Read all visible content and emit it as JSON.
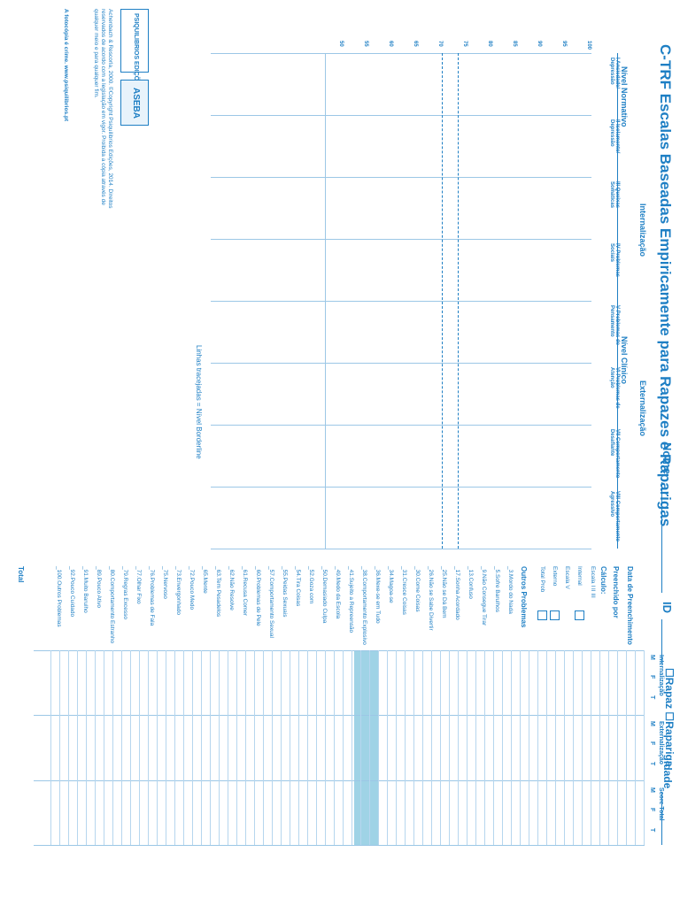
{
  "header": {
    "title": "C-TRF Escalas Baseadas Empiricamente para Rapazes e Raparigas",
    "name_label": "Nome",
    "id_label": "ID",
    "sex_label": "☐Rapaz ☐Rapariga",
    "age_label": "Idade"
  },
  "profile": {
    "nivel_normativo": "Nível Normativo",
    "nivel_clinico": "Nível Clínico",
    "internalizacao": "Internalização",
    "externalizacao": "Externalização",
    "rapaz": "Rapaz",
    "rapariga": "Rapariga",
    "columns": [
      {
        "label": "I\nAnsiedade/ Depressão"
      },
      {
        "label": "II\nIsolamento/ Depressão"
      },
      {
        "label": "III\nQueixas Somáticas"
      },
      {
        "label": "IV\nProblemas Sociais"
      },
      {
        "label": "V\nProblemas de Pensamento"
      },
      {
        "label": "VI\nProblemas de Atenção"
      },
      {
        "label": "VII\nComportamento Desafiante"
      },
      {
        "label": "VIII\nComportamento Agressivo"
      }
    ],
    "scale_left": [
      "100",
      "95",
      "90",
      "85",
      "80",
      "75",
      "70",
      "65",
      "60",
      "55",
      "50"
    ],
    "total_label": "Total",
    "borderline_note": "Linhas tracejadas = Nível Borderline"
  },
  "right_panel": {
    "data_label": "Data de Preenchimento",
    "preenchido_label": "Preenchido por",
    "calculo_label": "Cálculo:",
    "escala_label": "Escala I II III",
    "internal_label": "Internal",
    "escala_v": "Escala V",
    "externo_label": "Externo",
    "total_prob_label": "Total Prob",
    "outros_label": "Outros Problemas",
    "outros_items": [
      "3.Mordo do Nada",
      "5.Sofre Barulhos",
      "9.Não Consegue Tirar",
      "13.Confuso",
      "17.Sonha Acordado",
      "25.Não se Dá Bem",
      "26.Não se Sabe Divertir",
      "30.Come Coisas",
      "31.Cresce Coisas",
      "34.Magoa-se",
      "36.Mexe-se em Tudo",
      "38.Comportamento Explosivo",
      "41.Sujeito a Repreensão",
      "49.Medo da Escola",
      "50.Demasiado Culpa",
      "52.Goza com",
      "54.Tira Coisas",
      "55.Peidas Sexuais",
      "57.Comportamento Sexual",
      "60.Problemas de Pele",
      "61.Recusa Comer",
      "62.Não Resolve",
      "63.Tem Pesadelos",
      "65.Mente",
      "72.Pouco Medo",
      "73.Envergonhado",
      "75.Nervoso",
      "76.Problemas de Fala",
      "77.Olhar Fixo",
      "79.Regras Excesso",
      "80.Comportamento Estranho",
      "89.Pouco Ativo",
      "91.Muito Barulho",
      "92.Pouco Cuidado",
      "100.Outros Problemas"
    ],
    "total_label": "Total"
  },
  "score_table": {
    "internalizacao": "Internalização",
    "externalizacao": "Externalização",
    "score_total": "Score Total",
    "m": "M",
    "f": "F",
    "t": "T"
  },
  "publisher": {
    "logo_left": "PSIQUILIBRIOS EDIÇÕES",
    "logo_right": "ASEBA",
    "copyright": "Achenbach & Rescorla, 2000. ©Copyright Psiquilibrios Edições, 2014. Direitos reservados de acordo com a legislação em vigor. Proibida a cópia através de qualquer meio e para qualquer fim.",
    "warning": "A fotocópia é crime. www.psiquilibrios.pt"
  }
}
